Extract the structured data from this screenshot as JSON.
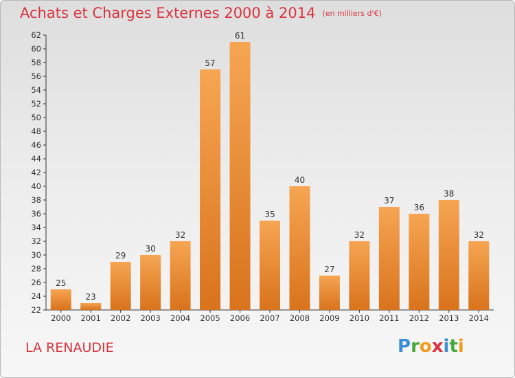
{
  "header": {
    "title": "Achats et Charges Externes 2000 à 2014",
    "unit": "(en milliers d'€)"
  },
  "footer": {
    "commune": "LA RENAUDIE",
    "logo_letters": [
      {
        "char": "P",
        "color": "#3a8fd6"
      },
      {
        "char": "r",
        "color": "#4aa83f"
      },
      {
        "char": "o",
        "color": "#f29a1e"
      },
      {
        "char": "x",
        "color": "#d7343f"
      },
      {
        "char": "i",
        "color": "#3a8fd6"
      },
      {
        "char": "t",
        "color": "#4aa83f"
      },
      {
        "char": "i",
        "color": "#f29a1e"
      }
    ]
  },
  "chart_data": {
    "type": "bar",
    "title": "Achats et Charges Externes 2000 à 2014",
    "categories": [
      "2000",
      "2001",
      "2002",
      "2003",
      "2004",
      "2005",
      "2006",
      "2007",
      "2008",
      "2009",
      "2010",
      "2011",
      "2012",
      "2013",
      "2014"
    ],
    "values": [
      25,
      23,
      29,
      30,
      32,
      57,
      61,
      35,
      40,
      27,
      32,
      37,
      36,
      38,
      32
    ],
    "ylim": [
      22,
      62
    ],
    "yticks": [
      22,
      24,
      26,
      28,
      30,
      32,
      34,
      36,
      38,
      40,
      42,
      44,
      46,
      48,
      50,
      52,
      54,
      56,
      58,
      60,
      62
    ],
    "grid": false,
    "bar_color": "#e8822a",
    "bar_color_light": "#f6a552"
  }
}
